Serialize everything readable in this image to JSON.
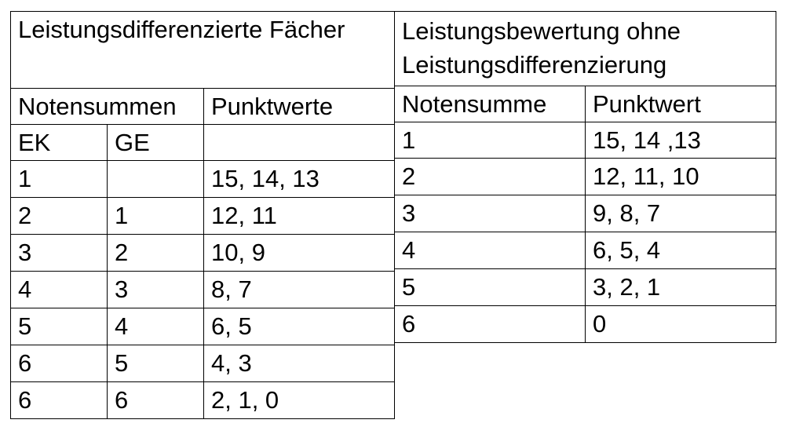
{
  "left": {
    "title": "Leistungsdifferenzierte Fächer",
    "col_notensummen": "Notensummen",
    "col_punktwerte": "Punktwerte",
    "sub_ek": "EK",
    "sub_ge": "GE",
    "rows": [
      {
        "ek": "1",
        "ge": "",
        "punkte": "15, 14, 13"
      },
      {
        "ek": "2",
        "ge": "1",
        "punkte": "12, 11"
      },
      {
        "ek": "3",
        "ge": "2",
        "punkte": "10, 9"
      },
      {
        "ek": "4",
        "ge": "3",
        "punkte": "8, 7"
      },
      {
        "ek": "5",
        "ge": "4",
        "punkte": "6, 5"
      },
      {
        "ek": "6",
        "ge": "5",
        "punkte": "4, 3"
      },
      {
        "ek": "6",
        "ge": "6",
        "punkte": "2, 1, 0"
      }
    ]
  },
  "right": {
    "title": "Leistungsbewertung ohne Leistungsdifferenzierung",
    "col_notensumme": "Notensumme",
    "col_punktwert": "Punktwert",
    "rows": [
      {
        "note": "1",
        "punkte": "15, 14 ,13"
      },
      {
        "note": "2",
        "punkte": "12, 11, 10"
      },
      {
        "note": "3",
        "punkte": "9, 8, 7"
      },
      {
        "note": "4",
        "punkte": "6, 5, 4"
      },
      {
        "note": "5",
        "punkte": "3, 2, 1"
      },
      {
        "note": "6",
        "punkte": "0"
      }
    ]
  }
}
